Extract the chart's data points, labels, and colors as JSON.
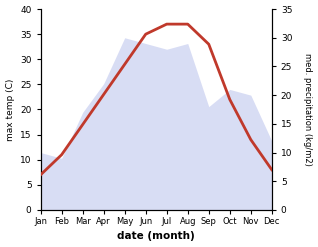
{
  "months": [
    "Jan",
    "Feb",
    "Mar",
    "Apr",
    "May",
    "Jun",
    "Jul",
    "Aug",
    "Sep",
    "Oct",
    "Nov",
    "Dec"
  ],
  "temperature": [
    7,
    11,
    17,
    23,
    29,
    35,
    37,
    37,
    33,
    22,
    14,
    8
  ],
  "precipitation": [
    10,
    9,
    17,
    22,
    30,
    29,
    28,
    29,
    18,
    21,
    20,
    12
  ],
  "temp_color": "#c0392b",
  "precip_color": "#aab4e8",
  "temp_ylim": [
    0,
    40
  ],
  "precip_ylim": [
    0,
    35
  ],
  "xlabel": "date (month)",
  "ylabel_left": "max temp (C)",
  "ylabel_right": "med. precipitation (kg/m2)",
  "temp_linewidth": 2.0
}
